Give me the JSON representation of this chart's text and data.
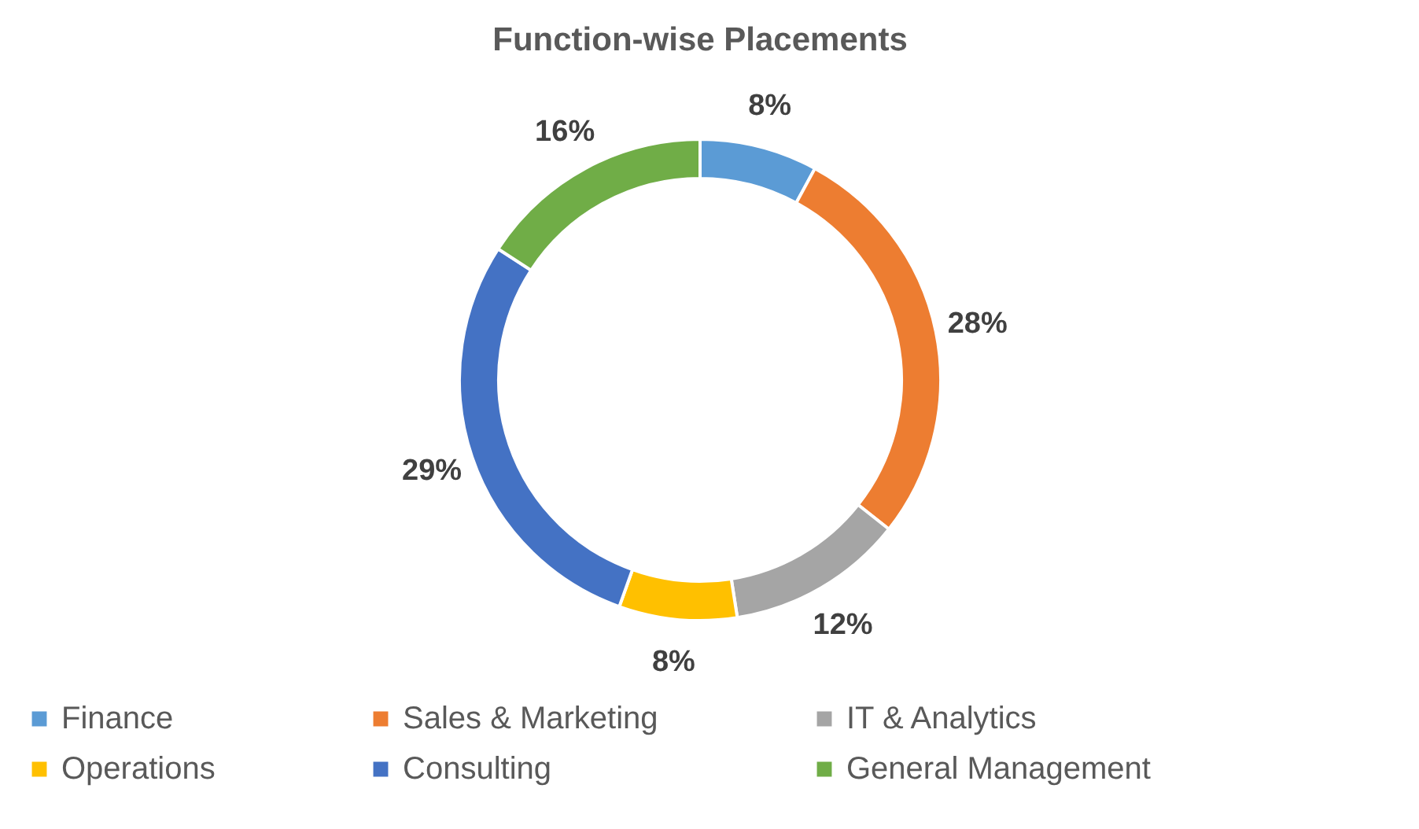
{
  "chart_data": {
    "type": "donut",
    "title": "Function-wise Placements",
    "categories": [
      "Finance",
      "Sales & Marketing",
      "IT & Analytics",
      "Operations",
      "Consulting",
      "General Management"
    ],
    "values": [
      8,
      28,
      12,
      8,
      29,
      16
    ],
    "value_labels": [
      "8%",
      "28%",
      "12%",
      "8%",
      "29%",
      "16%"
    ],
    "colors": [
      "#5b9bd5",
      "#ed7d31",
      "#a5a5a5",
      "#ffc000",
      "#4472c4",
      "#70ad47"
    ],
    "legend": "bottom"
  }
}
